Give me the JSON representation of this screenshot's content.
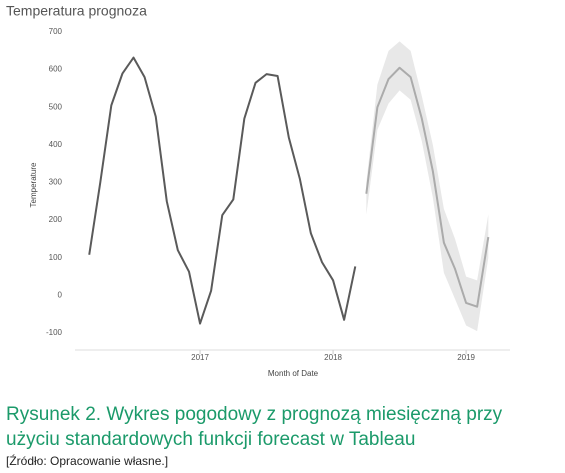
{
  "chart_data": {
    "type": "line",
    "title": "Temperatura prognoza",
    "xlabel": "Month of Date",
    "ylabel": "Temperature",
    "x": [
      2016.167,
      2016.25,
      2016.333,
      2016.417,
      2016.5,
      2016.583,
      2016.667,
      2016.75,
      2016.833,
      2016.917,
      2017,
      2017.083,
      2017.167,
      2017.25,
      2017.333,
      2017.417,
      2017.5,
      2017.583,
      2017.667,
      2017.75,
      2017.833,
      2017.917,
      2018,
      2018.083,
      2018.167
    ],
    "series": [
      {
        "color": "#5a5a5a",
        "values": [
          108,
          300,
          505,
          590,
          632,
          580,
          475,
          250,
          120,
          63,
          -75,
          12,
          213,
          255,
          470,
          565,
          588,
          583,
          420,
          310,
          165,
          88,
          40,
          -65,
          77
        ]
      },
      {
        "color": "#ababab",
        "band_color": "#e8e8e8",
        "x": [
          2018.25,
          2018.333,
          2018.417,
          2018.5,
          2018.583,
          2018.667,
          2018.75,
          2018.833,
          2018.917,
          2019,
          2019.083,
          2019.167
        ],
        "values": [
          270,
          500,
          575,
          605,
          580,
          470,
          330,
          140,
          70,
          -20,
          -30,
          155
        ],
        "upper": [
          300,
          560,
          650,
          675,
          650,
          530,
          400,
          230,
          150,
          50,
          40,
          215
        ],
        "lower": [
          215,
          440,
          510,
          545,
          520,
          410,
          260,
          60,
          -10,
          -80,
          -95,
          100
        ]
      }
    ],
    "xlim": [
      2016.06,
      2019.33
    ],
    "xticks": [
      2017,
      2018,
      2019
    ],
    "ylim": [
      -100,
      700
    ],
    "yticks": [
      -100,
      0,
      100,
      200,
      300,
      400,
      500,
      600,
      700
    ]
  },
  "caption": [
    "Rysunek 2. Wykres pogodowy z prognozą miesięczną przy",
    "użyciu standardowych funkcji forecast w Tableau"
  ],
  "source": "[Źródło: Opracowanie własne.]"
}
